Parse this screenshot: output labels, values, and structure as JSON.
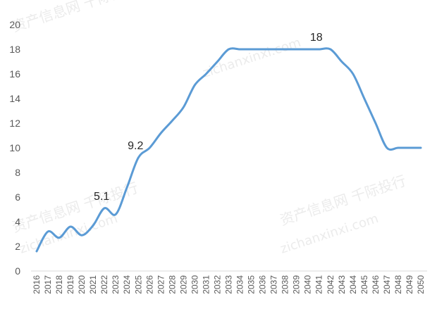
{
  "watermark": {
    "text_cn": "资产信息网 千际投行",
    "text_en": "zichanxinxi.com"
  },
  "chart_data": {
    "type": "line",
    "title": "",
    "xlabel": "",
    "ylabel": "",
    "ylim": [
      0,
      20
    ],
    "yticks": [
      "0",
      "2",
      "4",
      "6",
      "8",
      "10",
      "12",
      "14",
      "16",
      "18",
      "20"
    ],
    "grid": false,
    "line_color": "#5B9BD5",
    "categories": [
      "2016",
      "2017",
      "2018",
      "2019",
      "2020",
      "2021",
      "2022",
      "2023",
      "2024",
      "2025",
      "2026",
      "2027",
      "2028",
      "2029",
      "2030",
      "2031",
      "2032",
      "2033",
      "2034",
      "2035",
      "2036",
      "2037",
      "2038",
      "2039",
      "2040",
      "2041",
      "2042",
      "2043",
      "2044",
      "2045",
      "2046",
      "2047",
      "2048",
      "2049",
      "2050"
    ],
    "values": [
      1.6,
      3.2,
      2.7,
      3.6,
      2.9,
      3.7,
      5.1,
      4.6,
      6.8,
      9.2,
      10.0,
      11.2,
      12.2,
      13.3,
      15.1,
      16.0,
      17.0,
      18.0,
      18.0,
      18.0,
      18.0,
      18.0,
      18.0,
      18.0,
      18.0,
      18.0,
      18.0,
      17.0,
      16.0,
      14.0,
      12.0,
      10.0,
      10.0,
      10.0,
      10.0
    ],
    "data_labels": [
      {
        "index": 6,
        "text": "5.1"
      },
      {
        "index": 9,
        "text": "9.2"
      },
      {
        "index": 25,
        "text": "18"
      }
    ]
  }
}
